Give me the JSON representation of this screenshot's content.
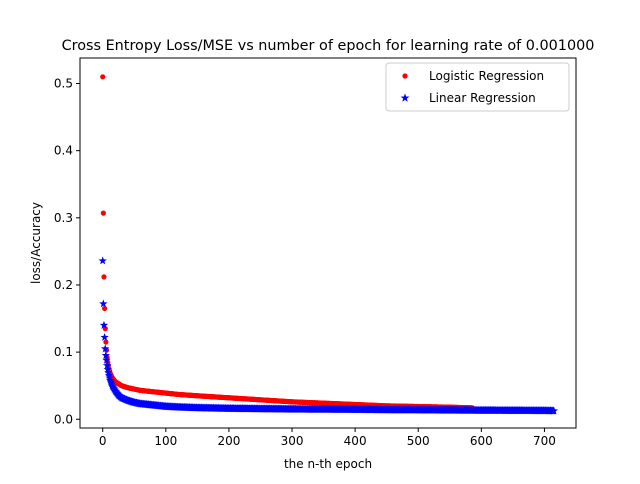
{
  "chart_data": {
    "type": "scatter",
    "title": "Cross Entropy Loss/MSE vs number of epoch for learning rate of 0.001000",
    "xlabel": "the n-th epoch",
    "ylabel": "loss/Accuracy",
    "xlim": [
      -36,
      750
    ],
    "ylim": [
      -0.013,
      0.538
    ],
    "xticks": [
      0,
      100,
      200,
      300,
      400,
      500,
      600,
      700
    ],
    "xtick_labels": [
      "0",
      "100",
      "200",
      "300",
      "400",
      "500",
      "600",
      "700"
    ],
    "yticks": [
      0.0,
      0.1,
      0.2,
      0.3,
      0.4,
      0.5
    ],
    "ytick_labels": [
      "0.0",
      "0.1",
      "0.2",
      "0.3",
      "0.4",
      "0.5"
    ],
    "grid": false,
    "legend_position": "upper right",
    "series": [
      {
        "name": "Logistic Regression",
        "marker": "circle",
        "color": "#ff0000",
        "x": [
          0,
          1,
          2,
          3,
          4,
          5,
          6,
          7,
          8,
          10,
          12,
          15,
          20,
          25,
          30,
          40,
          50,
          60,
          80,
          100,
          120,
          150,
          200,
          250,
          300,
          350,
          400,
          450,
          500,
          550,
          586
        ],
        "y": [
          0.51,
          0.307,
          0.212,
          0.165,
          0.135,
          0.115,
          0.103,
          0.092,
          0.085,
          0.075,
          0.068,
          0.062,
          0.056,
          0.053,
          0.05,
          0.047,
          0.045,
          0.043,
          0.041,
          0.039,
          0.037,
          0.035,
          0.032,
          0.029,
          0.026,
          0.024,
          0.022,
          0.02,
          0.019,
          0.018,
          0.017
        ]
      },
      {
        "name": "Linear Regression",
        "marker": "star",
        "color": "#0000ff",
        "x": [
          0,
          1,
          2,
          3,
          4,
          5,
          6,
          7,
          8,
          10,
          12,
          15,
          20,
          25,
          30,
          40,
          50,
          60,
          80,
          100,
          120,
          150,
          200,
          250,
          300,
          350,
          400,
          450,
          500,
          550,
          600,
          650,
          700,
          715
        ],
        "y": [
          0.236,
          0.172,
          0.14,
          0.122,
          0.105,
          0.095,
          0.088,
          0.08,
          0.074,
          0.065,
          0.058,
          0.05,
          0.042,
          0.036,
          0.032,
          0.028,
          0.025,
          0.023,
          0.021,
          0.019,
          0.018,
          0.017,
          0.016,
          0.0155,
          0.015,
          0.0148,
          0.0145,
          0.014,
          0.0138,
          0.0135,
          0.0132,
          0.013,
          0.0128,
          0.0125
        ]
      }
    ]
  }
}
